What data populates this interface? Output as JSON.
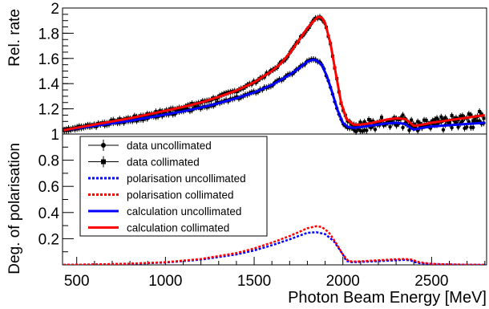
{
  "chart_data": {
    "type": "line",
    "xlabel": "Photon Beam Energy [MeV]",
    "xlim": [
      420,
      2810
    ],
    "x_ticks": [
      500,
      1000,
      1500,
      2000,
      2500
    ],
    "top_panel": {
      "ylabel": "Rel.  rate",
      "ylim": [
        1.0,
        2.0
      ],
      "y_ticks": [
        1,
        1.2,
        1.4,
        1.6,
        1.8,
        2
      ]
    },
    "bottom_panel": {
      "ylabel": "Deg. of polarisation",
      "ylim": [
        0.0,
        1.0
      ],
      "y_ticks": [
        0.2,
        0.4,
        0.6,
        0.8,
        1
      ]
    },
    "legend": {
      "placement": "center-left",
      "entries": [
        {
          "label": "data uncollimated",
          "style": "dot-marker",
          "color": "#000000"
        },
        {
          "label": "data collimated",
          "style": "square-marker",
          "color": "#000000"
        },
        {
          "label": "polarisation uncollimated",
          "style": "dotted",
          "color": "#0000ff"
        },
        {
          "label": "polarisation collimated",
          "style": "dotted",
          "color": "#ff0000"
        },
        {
          "label": "calculation uncollimated",
          "style": "solid",
          "color": "#0000ff"
        },
        {
          "label": "calculation collimated",
          "style": "solid",
          "color": "#ff0000"
        }
      ]
    },
    "series": [
      {
        "key": "calc_uncollimated",
        "panel": "top",
        "color": "#0000ff",
        "style": "solid",
        "x": [
          425,
          500,
          600,
          700,
          800,
          900,
          1000,
          1100,
          1200,
          1300,
          1400,
          1500,
          1600,
          1700,
          1750,
          1800,
          1830,
          1850,
          1880,
          1910,
          1940,
          1970,
          2000,
          2030,
          2060,
          2100,
          2150,
          2200,
          2250,
          2300,
          2350,
          2380,
          2400,
          2450,
          2500,
          2550,
          2600,
          2650,
          2700,
          2750,
          2800
        ],
        "y": [
          1.03,
          1.045,
          1.065,
          1.085,
          1.105,
          1.13,
          1.155,
          1.18,
          1.21,
          1.245,
          1.285,
          1.33,
          1.39,
          1.47,
          1.52,
          1.575,
          1.59,
          1.585,
          1.55,
          1.46,
          1.33,
          1.19,
          1.09,
          1.055,
          1.05,
          1.055,
          1.065,
          1.075,
          1.085,
          1.09,
          1.08,
          1.05,
          1.035,
          1.05,
          1.06,
          1.065,
          1.07,
          1.075,
          1.08,
          1.085,
          1.09
        ]
      },
      {
        "key": "calc_collimated",
        "panel": "top",
        "color": "#ff0000",
        "style": "solid",
        "x": [
          425,
          500,
          600,
          700,
          800,
          900,
          1000,
          1100,
          1200,
          1300,
          1400,
          1500,
          1600,
          1650,
          1700,
          1750,
          1800,
          1830,
          1860,
          1880,
          1900,
          1930,
          1960,
          1990,
          2020,
          2060,
          2100,
          2150,
          2200,
          2250,
          2300,
          2350,
          2380,
          2400,
          2450,
          2500,
          2550,
          2600,
          2650,
          2700,
          2750,
          2800
        ],
        "y": [
          1.03,
          1.05,
          1.075,
          1.1,
          1.125,
          1.155,
          1.185,
          1.215,
          1.25,
          1.295,
          1.345,
          1.41,
          1.5,
          1.56,
          1.64,
          1.74,
          1.84,
          1.89,
          1.93,
          1.925,
          1.88,
          1.72,
          1.48,
          1.25,
          1.12,
          1.075,
          1.075,
          1.085,
          1.1,
          1.115,
          1.125,
          1.12,
          1.09,
          1.065,
          1.075,
          1.09,
          1.1,
          1.11,
          1.12,
          1.13,
          1.14,
          1.15
        ]
      },
      {
        "key": "pol_uncollimated",
        "panel": "bottom",
        "color": "#0000ff",
        "style": "dotted",
        "x": [
          425,
          600,
          800,
          1000,
          1200,
          1400,
          1500,
          1600,
          1700,
          1750,
          1800,
          1850,
          1900,
          1950,
          2000,
          2020,
          2050,
          2100,
          2200,
          2300,
          2350,
          2380,
          2420,
          2500,
          2600,
          2700,
          2800
        ],
        "y": [
          0.0,
          0.003,
          0.008,
          0.018,
          0.04,
          0.08,
          0.11,
          0.15,
          0.195,
          0.22,
          0.245,
          0.25,
          0.235,
          0.18,
          0.08,
          0.03,
          0.02,
          0.022,
          0.028,
          0.035,
          0.038,
          0.035,
          0.015,
          0.006,
          0.003,
          0.001,
          0.0
        ]
      },
      {
        "key": "pol_collimated",
        "panel": "bottom",
        "color": "#ff0000",
        "style": "dotted",
        "x": [
          425,
          600,
          800,
          1000,
          1200,
          1400,
          1500,
          1600,
          1700,
          1750,
          1800,
          1850,
          1880,
          1920,
          1960,
          2000,
          2030,
          2060,
          2100,
          2200,
          2300,
          2350,
          2390,
          2430,
          2500,
          2600,
          2700,
          2800
        ],
        "y": [
          0.0,
          0.003,
          0.009,
          0.02,
          0.045,
          0.09,
          0.125,
          0.17,
          0.22,
          0.25,
          0.28,
          0.295,
          0.29,
          0.25,
          0.17,
          0.08,
          0.03,
          0.025,
          0.027,
          0.035,
          0.043,
          0.045,
          0.04,
          0.02,
          0.008,
          0.003,
          0.001,
          0.0
        ]
      }
    ]
  }
}
